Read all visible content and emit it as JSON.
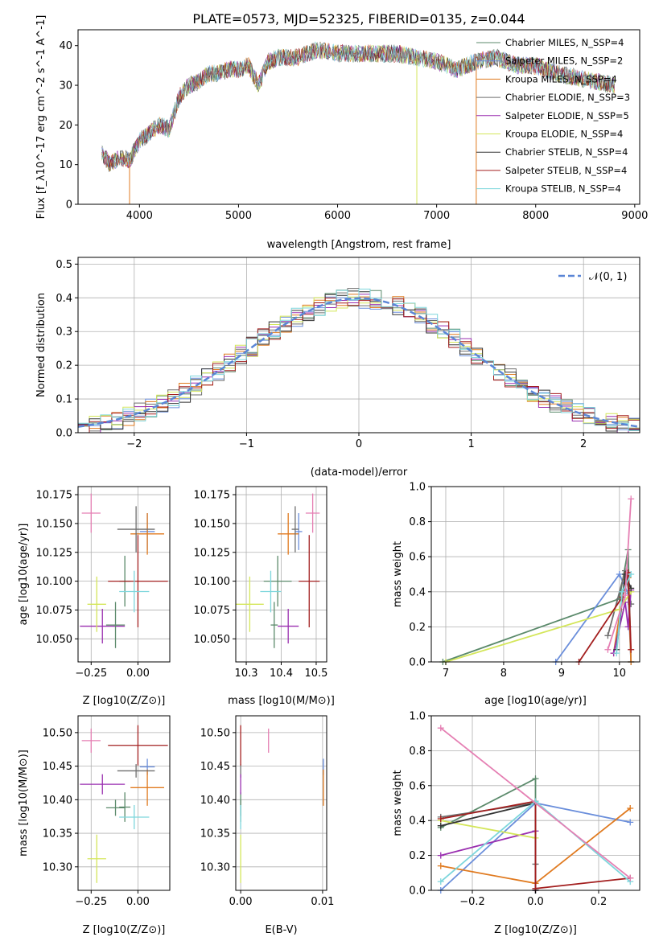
{
  "title": "PLATE=0573, MJD=52325, FIBERID=0135, z=0.044",
  "series": [
    {
      "name": "Chabrier MILES, N_SSP=4",
      "color": "#5b8a6b"
    },
    {
      "name": "Salpeter MILES, N_SSP=2",
      "color": "#6a8edb"
    },
    {
      "name": "Kroupa MILES, N_SSP=4",
      "color": "#e07a1f"
    },
    {
      "name": "Chabrier ELODIE, N_SSP=3",
      "color": "#6e6e6e"
    },
    {
      "name": "Salpeter ELODIE, N_SSP=5",
      "color": "#9a2fb0"
    },
    {
      "name": "Kroupa ELODIE, N_SSP=4",
      "color": "#d4e65a"
    },
    {
      "name": "Chabrier STELIB, N_SSP=4",
      "color": "#333333"
    },
    {
      "name": "Salpeter STELIB, N_SSP=4",
      "color": "#a31f1f"
    },
    {
      "name": "Kroupa STELIB, N_SSP=4",
      "color": "#7dd6dc"
    }
  ],
  "chart_data": [
    {
      "type": "line",
      "xlabel": "wavelength [Angstrom, rest frame]",
      "ylabel": "Flux [f_λ10^-17 erg cm^-2 s^-1 A^-1]",
      "xlim": [
        3380,
        9050
      ],
      "ylim": [
        0,
        44
      ],
      "xticks": [
        "4000",
        "5000",
        "6000",
        "7000",
        "8000",
        "9000"
      ],
      "yticks": [
        "0",
        "10",
        "20",
        "30",
        "40"
      ],
      "spectrum_shape": {
        "x": [
          3620,
          3700,
          3800,
          3900,
          4000,
          4100,
          4200,
          4300,
          4400,
          4500,
          4600,
          4700,
          4800,
          4900,
          5000,
          5100,
          5200,
          5300,
          5400,
          5600,
          5800,
          6000,
          6200,
          6400,
          6600,
          6800,
          7000,
          7200,
          7400,
          7600,
          7800,
          8000,
          8200,
          8400,
          8600,
          8800
        ],
        "y": [
          13,
          10,
          12,
          11,
          16,
          18,
          20,
          19,
          27,
          30,
          31,
          33,
          33,
          34,
          34,
          35,
          30,
          36,
          37,
          37,
          39,
          38,
          38,
          38,
          38,
          37,
          36,
          34,
          36,
          37,
          35,
          35,
          33,
          32,
          31,
          30
        ]
      }
    },
    {
      "type": "bar",
      "xlabel": "(data-model)/error",
      "ylabel": "Normed distribution",
      "xlim": [
        -2.5,
        2.5
      ],
      "ylim": [
        0,
        0.52
      ],
      "xticks": [
        "−2",
        "−1",
        "0",
        "1",
        "2"
      ],
      "yticks": [
        "0.0",
        "0.1",
        "0.2",
        "0.3",
        "0.4",
        "0.5"
      ],
      "reference_curve": "𝒩(0, 1)"
    },
    {
      "type": "scatter",
      "xlabel": "Z [log10(Z/Z⊙)]",
      "ylabel": "age [log10(age/yr)]",
      "xlim": [
        -0.32,
        0.17
      ],
      "ylim": [
        10.03,
        10.182
      ],
      "xticks": [
        "−0.25",
        "0.00"
      ],
      "yticks": [
        "10.050",
        "10.075",
        "10.100",
        "10.125",
        "10.150",
        "10.175"
      ],
      "points": [
        {
          "x": -0.07,
          "y": 10.1,
          "ex": 0.03,
          "ey": 0.022
        },
        {
          "x": 0.05,
          "y": 10.143,
          "ex": 0.04,
          "ey": 0.016
        },
        {
          "x": 0.05,
          "y": 10.141,
          "ex": 0.09,
          "ey": 0.018
        },
        {
          "x": -0.01,
          "y": 10.145,
          "ex": 0.1,
          "ey": 0.02
        },
        {
          "x": -0.19,
          "y": 10.061,
          "ex": 0.12,
          "ey": 0.015
        },
        {
          "x": -0.22,
          "y": 10.08,
          "ex": 0.05,
          "ey": 0.024
        },
        {
          "x": -0.12,
          "y": 10.062,
          "ex": 0.05,
          "ey": 0.02
        },
        {
          "x": 0.0,
          "y": 10.1,
          "ex": 0.16,
          "ey": 0.04
        },
        {
          "x": -0.02,
          "y": 10.091,
          "ex": 0.08,
          "ey": 0.018
        },
        {
          "x": -0.25,
          "y": 10.159,
          "ex": 0.05,
          "ey": 0.017
        }
      ]
    },
    {
      "type": "scatter",
      "xlabel": "mass [log10(M/M⊙)]",
      "ylabel": "",
      "xlim": [
        10.27,
        10.53
      ],
      "ylim": [
        10.03,
        10.182
      ],
      "xticks": [
        "10.3",
        "10.4",
        "10.5"
      ],
      "yticks": [
        "10.050",
        "10.075",
        "10.100",
        "10.125",
        "10.150",
        "10.175"
      ],
      "points": [
        {
          "x": 10.39,
          "y": 10.1,
          "ex": 0.04,
          "ey": 0.022
        },
        {
          "x": 10.45,
          "y": 10.143,
          "ex": 0.01,
          "ey": 0.016
        },
        {
          "x": 10.42,
          "y": 10.141,
          "ex": 0.03,
          "ey": 0.018
        },
        {
          "x": 10.44,
          "y": 10.145,
          "ex": 0.01,
          "ey": 0.02
        },
        {
          "x": 10.42,
          "y": 10.061,
          "ex": 0.03,
          "ey": 0.015
        },
        {
          "x": 10.31,
          "y": 10.08,
          "ex": 0.04,
          "ey": 0.024
        },
        {
          "x": 10.38,
          "y": 10.062,
          "ex": 0.01,
          "ey": 0.02
        },
        {
          "x": 10.48,
          "y": 10.1,
          "ex": 0.03,
          "ey": 0.04
        },
        {
          "x": 10.37,
          "y": 10.091,
          "ex": 0.03,
          "ey": 0.018
        },
        {
          "x": 10.49,
          "y": 10.159,
          "ex": 0.02,
          "ey": 0.017
        }
      ]
    },
    {
      "type": "line",
      "xlabel": "age [log10(age/yr)]",
      "ylabel": "mass weight",
      "xlim": [
        6.75,
        10.35
      ],
      "ylim": [
        0,
        1
      ],
      "xticks": [
        "7",
        "8",
        "9",
        "10"
      ],
      "yticks": [
        "0.0",
        "0.2",
        "0.4",
        "0.6",
        "0.8",
        "1.0"
      ],
      "series": [
        {
          "x": [
            6.95,
            10.0,
            10.15,
            10.2
          ],
          "y": [
            0.0,
            0.36,
            0.64,
            0.0
          ]
        },
        {
          "x": [
            8.9,
            10.0,
            10.15,
            10.2
          ],
          "y": [
            0.0,
            0.5,
            0.39,
            0.0
          ]
        },
        {
          "x": [
            9.9,
            10.1,
            10.15,
            10.2
          ],
          "y": [
            0.05,
            0.47,
            0.48,
            0.0
          ]
        },
        {
          "x": [
            9.8,
            10.1,
            10.2
          ],
          "y": [
            0.15,
            0.52,
            0.33
          ]
        },
        {
          "x": [
            9.9,
            10.1,
            10.15,
            10.2
          ],
          "y": [
            0.05,
            0.34,
            0.2,
            0.41
          ]
        },
        {
          "x": [
            7.0,
            10.0,
            10.2
          ],
          "y": [
            0.0,
            0.3,
            0.4
          ]
        },
        {
          "x": [
            9.95,
            10.1,
            10.2
          ],
          "y": [
            0.07,
            0.5,
            0.42
          ]
        },
        {
          "x": [
            9.3,
            10.05,
            10.15,
            10.2
          ],
          "y": [
            0.0,
            0.37,
            0.51,
            0.07
          ]
        },
        {
          "x": [
            9.95,
            10.05,
            10.2
          ],
          "y": [
            0.05,
            0.4,
            0.5
          ]
        },
        {
          "x": [
            9.8,
            10.1,
            10.2
          ],
          "y": [
            0.07,
            0.38,
            0.93
          ]
        }
      ]
    },
    {
      "type": "scatter",
      "xlabel": "Z [log10(Z/Z⊙)]",
      "ylabel": "mass [log10(M/M⊙)]",
      "xlim": [
        -0.32,
        0.17
      ],
      "ylim": [
        10.265,
        10.525
      ],
      "xticks": [
        "−0.25",
        "0.00"
      ],
      "yticks": [
        "10.30",
        "10.35",
        "10.40",
        "10.45",
        "10.50"
      ],
      "points": [
        {
          "x": -0.07,
          "y": 10.389,
          "ex": 0.03,
          "ey": 0.022
        },
        {
          "x": 0.05,
          "y": 10.449,
          "ex": 0.04,
          "ey": 0.012
        },
        {
          "x": 0.05,
          "y": 10.418,
          "ex": 0.09,
          "ey": 0.027
        },
        {
          "x": -0.01,
          "y": 10.443,
          "ex": 0.1,
          "ey": 0.01
        },
        {
          "x": -0.19,
          "y": 10.423,
          "ex": 0.12,
          "ey": 0.015
        },
        {
          "x": -0.22,
          "y": 10.312,
          "ex": 0.05,
          "ey": 0.036
        },
        {
          "x": -0.12,
          "y": 10.388,
          "ex": 0.05,
          "ey": 0.012
        },
        {
          "x": 0.0,
          "y": 10.481,
          "ex": 0.16,
          "ey": 0.03
        },
        {
          "x": -0.02,
          "y": 10.374,
          "ex": 0.08,
          "ey": 0.018
        },
        {
          "x": -0.25,
          "y": 10.488,
          "ex": 0.05,
          "ey": 0.018
        }
      ]
    },
    {
      "type": "scatter",
      "xlabel": "E(B-V)",
      "ylabel": "",
      "xlim": [
        -0.0006,
        0.0105
      ],
      "ylim": [
        10.265,
        10.525
      ],
      "xticks": [
        "0.00",
        "0.01"
      ],
      "yticks": [
        "10.30",
        "10.35",
        "10.40",
        "10.45",
        "10.50"
      ],
      "points": [
        {
          "x": 0.0,
          "y": 10.389,
          "ey": 0.022
        },
        {
          "x": 0.0101,
          "y": 10.449,
          "ey": 0.012
        },
        {
          "x": 0.0101,
          "y": 10.418,
          "ey": 0.027
        },
        {
          "x": 0.0,
          "y": 10.443,
          "ey": 0.01
        },
        {
          "x": 0.0,
          "y": 10.423,
          "ey": 0.015
        },
        {
          "x": 0.0,
          "y": 10.312,
          "ey": 0.036
        },
        {
          "x": 0.0,
          "y": 10.388,
          "ey": 0.012
        },
        {
          "x": 0.0,
          "y": 10.481,
          "ey": 0.03
        },
        {
          "x": 0.0,
          "y": 10.374,
          "ey": 0.018
        },
        {
          "x": 0.0034,
          "y": 10.488,
          "ey": 0.018
        }
      ]
    },
    {
      "type": "line",
      "xlabel": "Z [log10(Z/Z⊙)]",
      "ylabel": "mass weight",
      "xlim": [
        -0.33,
        0.33
      ],
      "ylim": [
        0,
        1
      ],
      "xticks": [
        "−0.2",
        "0.0",
        "0.2"
      ],
      "yticks": [
        "0.0",
        "0.2",
        "0.4",
        "0.6",
        "0.8",
        "1.0"
      ],
      "series": [
        {
          "x": [
            -0.3,
            0.0,
            0.0,
            0.0
          ],
          "y": [
            0.36,
            0.64,
            0.0,
            0.0
          ]
        },
        {
          "x": [
            -0.3,
            0.0,
            0.3
          ],
          "y": [
            0.0,
            0.5,
            0.39
          ]
        },
        {
          "x": [
            -0.3,
            0.0,
            0.3
          ],
          "y": [
            0.14,
            0.04,
            0.47
          ]
        },
        {
          "x": [
            -0.3,
            0.0,
            0.0
          ],
          "y": [
            0.42,
            0.5,
            0.15
          ]
        },
        {
          "x": [
            -0.3,
            0.0,
            0.0
          ],
          "y": [
            0.2,
            0.34,
            0.0
          ]
        },
        {
          "x": [
            -0.3,
            0.0
          ],
          "y": [
            0.4,
            0.3
          ]
        },
        {
          "x": [
            -0.3,
            0.0,
            0.0
          ],
          "y": [
            0.37,
            0.5,
            0.0
          ]
        },
        {
          "x": [
            -0.3,
            0.0,
            0.0,
            0.3
          ],
          "y": [
            0.41,
            0.51,
            0.01,
            0.07
          ]
        },
        {
          "x": [
            -0.3,
            0.0,
            0.3
          ],
          "y": [
            0.05,
            0.51,
            0.05
          ]
        },
        {
          "x": [
            -0.3,
            0.3
          ],
          "y": [
            0.93,
            0.07
          ]
        }
      ]
    }
  ]
}
